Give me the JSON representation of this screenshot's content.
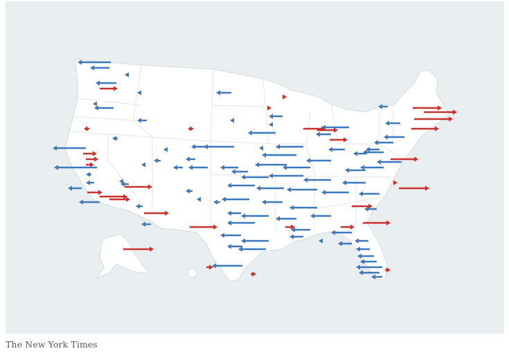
{
  "source_credit": "The New York Times",
  "colors": {
    "background": "#e9eef0",
    "land": "#ffffff",
    "shift_left": "#3b78c0",
    "shift_right": "#c8312e"
  },
  "legend_meaning": {
    "shift_left": "blue arrow pointing left",
    "shift_right": "red arrow pointing right"
  },
  "arrows": {
    "note": "each arrow: [region, direction, relative_length_0_to_1]",
    "items": [
      [
        "Pacific Northwest",
        "left",
        0.55
      ],
      [
        "Pacific Northwest",
        "right",
        0.25
      ],
      [
        "Northern California",
        "left",
        0.45
      ],
      [
        "Bay Area",
        "right",
        0.2
      ],
      [
        "Southern California",
        "right",
        0.55
      ],
      [
        "Southern California",
        "left",
        0.4
      ],
      [
        "Arizona",
        "right",
        0.5
      ],
      [
        "Texas",
        "left",
        0.6
      ],
      [
        "Texas",
        "right",
        0.2
      ],
      [
        "Florida",
        "left",
        0.45
      ],
      [
        "Northeast",
        "right",
        0.45
      ],
      [
        "Northeast",
        "left",
        0.35
      ],
      [
        "Midwest",
        "left",
        0.5
      ],
      [
        "Midwest",
        "right",
        0.3
      ],
      [
        "Alaska",
        "right",
        0.5
      ],
      [
        "Hawaii",
        "left",
        0.1
      ]
    ]
  }
}
